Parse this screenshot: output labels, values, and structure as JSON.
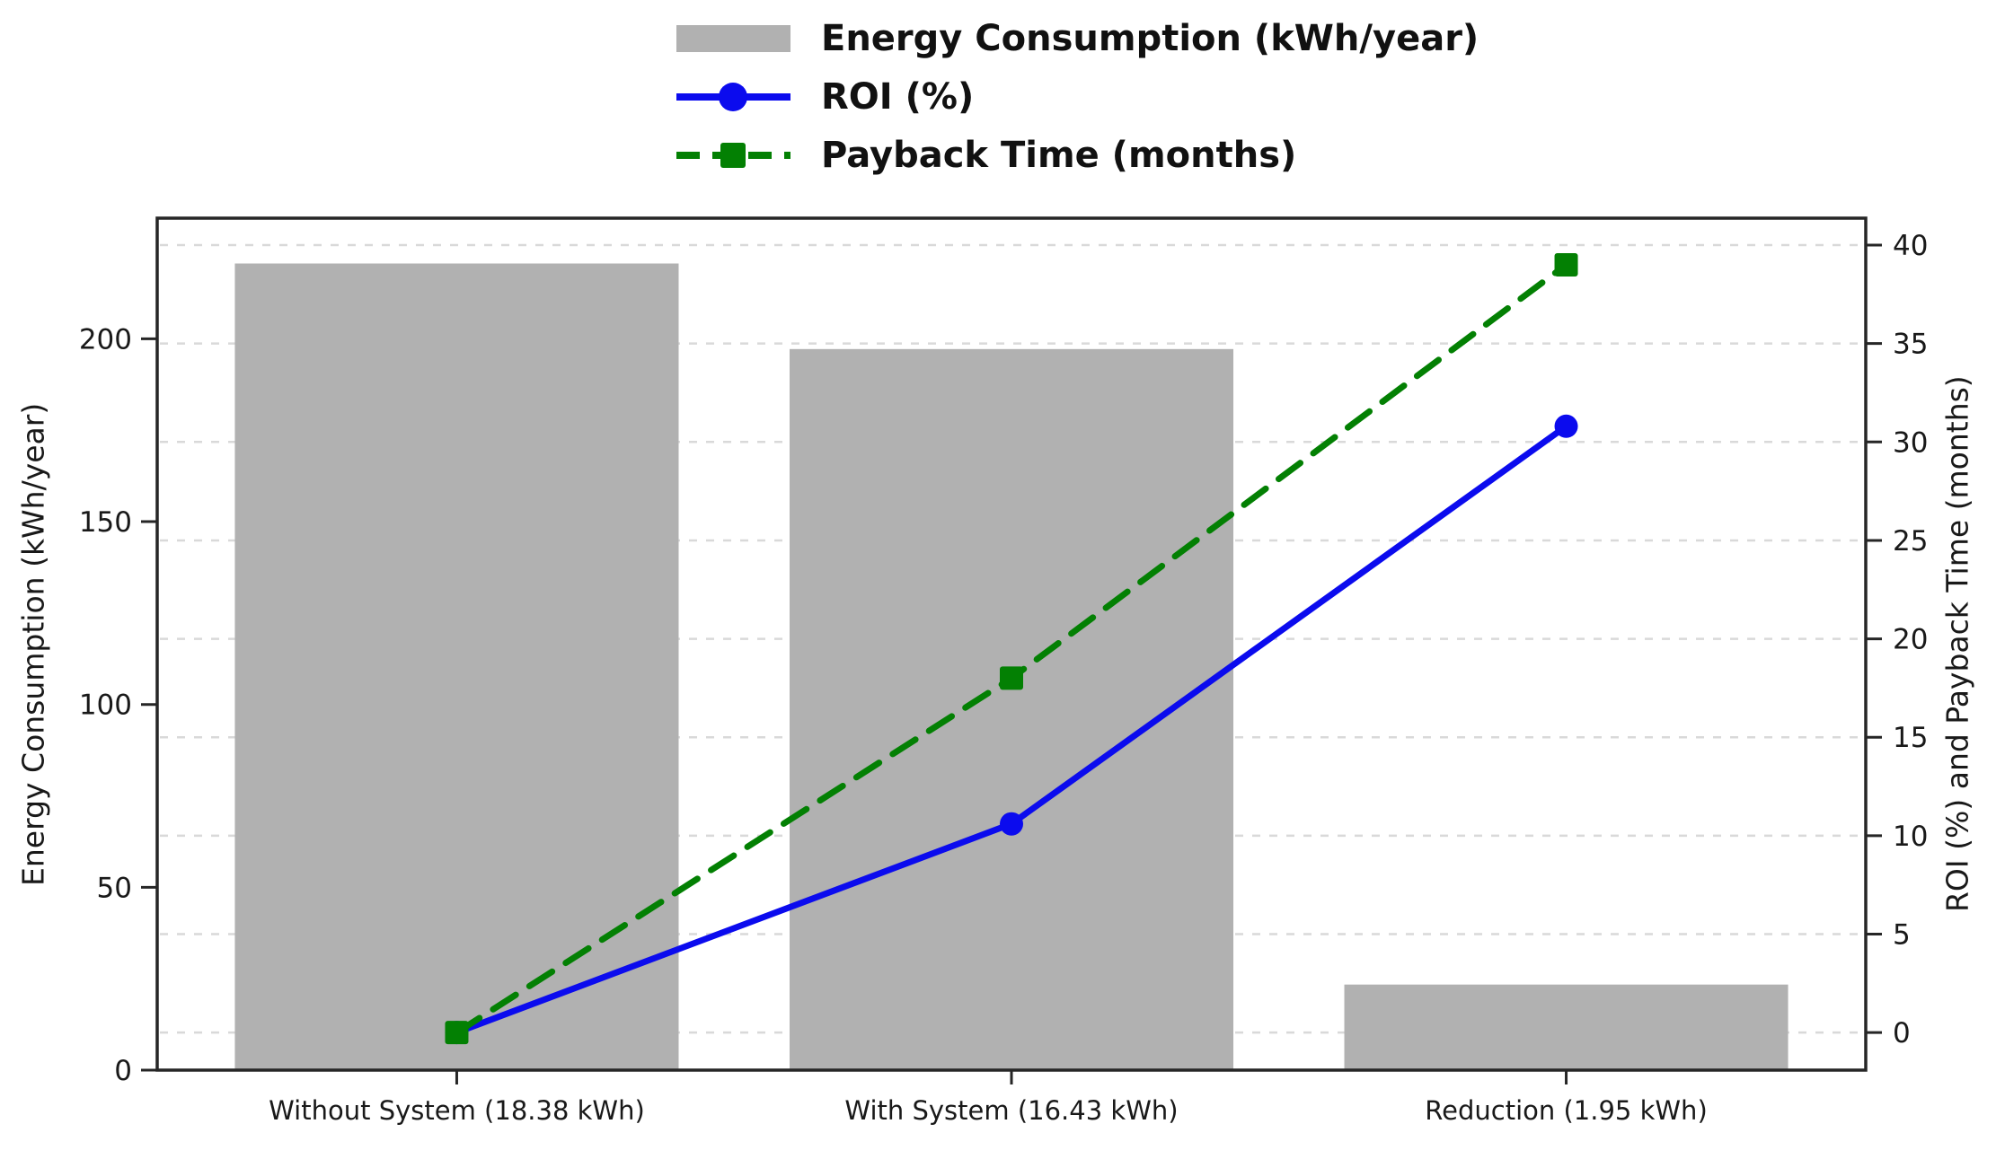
{
  "legend": {
    "items": [
      {
        "label": "Energy Consumption (kWh/year)"
      },
      {
        "label": "ROI (%)"
      },
      {
        "label": "Payback Time (months)"
      }
    ]
  },
  "chart_data": {
    "type": "bar",
    "title": "",
    "categories": [
      "Without System (18.38 kWh)",
      "With System (16.43 kWh)",
      "Reduction (1.95 kWh)"
    ],
    "series": [
      {
        "name": "Energy Consumption (kWh/year)",
        "type": "bar",
        "axis": "left",
        "color": "#b1b1b1",
        "values": [
          220.6,
          197.2,
          23.4
        ]
      },
      {
        "name": "ROI (%)",
        "type": "line",
        "dashed": false,
        "axis": "right",
        "color": "#0b0bee",
        "marker": "circle",
        "values": [
          0,
          10.6,
          30.8
        ]
      },
      {
        "name": "Payback Time (months)",
        "type": "line",
        "dashed": true,
        "axis": "right",
        "color": "#038003",
        "marker": "square",
        "values": [
          0,
          18,
          39
        ]
      }
    ],
    "left_axis": {
      "label": "Energy Consumption (kWh/year)",
      "ticks": [
        0,
        50,
        100,
        150,
        200
      ],
      "range": [
        0,
        233
      ]
    },
    "right_axis": {
      "label": "ROI (%) and Payback Time (months)",
      "ticks": [
        0,
        5,
        10,
        15,
        20,
        25,
        30,
        35,
        40
      ],
      "range": [
        -1.91,
        41.37
      ]
    },
    "x_axis": {
      "range": [
        -0.54,
        2.54
      ],
      "bar_width_ratio": 0.8
    },
    "grid": {
      "show": true,
      "style": "dashed",
      "color": "#d9d9d9",
      "source": "right-axis"
    },
    "legend_position": "top-center",
    "colors": {
      "bar": "#b1b1b1",
      "roi_line": "#0b0bee",
      "payback_line": "#038003",
      "spine": "#262626",
      "text": "#191919"
    }
  }
}
